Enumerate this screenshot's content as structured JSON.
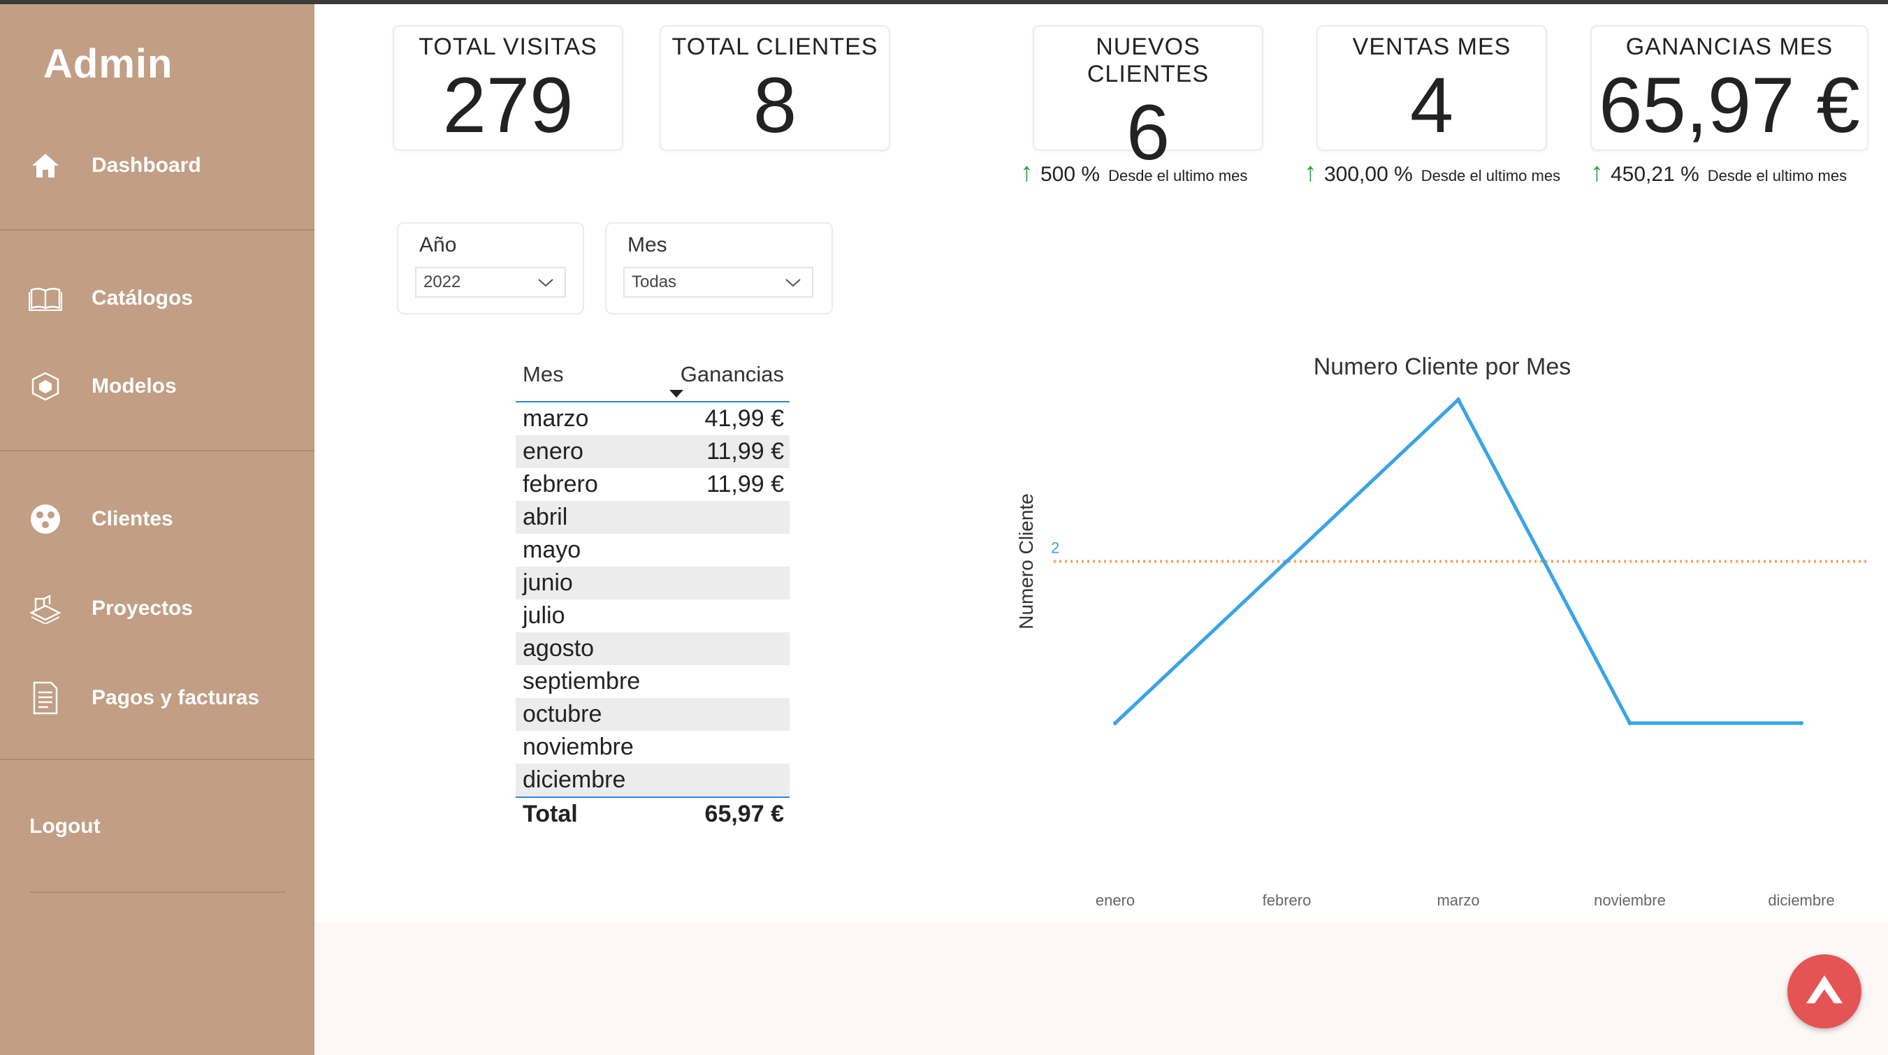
{
  "sidebar": {
    "brand": "Admin",
    "items": [
      {
        "label": "Dashboard",
        "icon": "home-icon"
      },
      {
        "label": "Catálogos",
        "icon": "book-icon"
      },
      {
        "label": "Modelos",
        "icon": "box-icon"
      },
      {
        "label": "Clientes",
        "icon": "users-icon"
      },
      {
        "label": "Proyectos",
        "icon": "blueprint-icon"
      },
      {
        "label": "Pagos y facturas",
        "icon": "invoice-icon"
      }
    ],
    "logout": "Logout"
  },
  "kpis": [
    {
      "title": "TOTAL VISITAS",
      "value": "279"
    },
    {
      "title": "TOTAL CLIENTES",
      "value": "8"
    },
    {
      "title": "NUEVOS CLIENTES",
      "value": "6",
      "delta": "500 %",
      "since": "Desde el ultimo mes"
    },
    {
      "title": "VENTAS MES",
      "value": "4",
      "delta": "300,00 %",
      "since": "Desde el ultimo mes"
    },
    {
      "title": "GANANCIAS MES",
      "value": "65,97 €",
      "delta": "450,21 %",
      "since": "Desde el ultimo mes"
    }
  ],
  "filters": {
    "year": {
      "label": "Año",
      "value": "2022"
    },
    "month": {
      "label": "Mes",
      "value": "Todas"
    }
  },
  "table": {
    "headers": [
      "Mes",
      "Ganancias"
    ],
    "rows": [
      {
        "mes": "marzo",
        "ganancias": "41,99 €"
      },
      {
        "mes": "enero",
        "ganancias": "11,99 €"
      },
      {
        "mes": "febrero",
        "ganancias": "11,99 €"
      },
      {
        "mes": "abril",
        "ganancias": ""
      },
      {
        "mes": "mayo",
        "ganancias": ""
      },
      {
        "mes": "junio",
        "ganancias": ""
      },
      {
        "mes": "julio",
        "ganancias": ""
      },
      {
        "mes": "agosto",
        "ganancias": ""
      },
      {
        "mes": "septiembre",
        "ganancias": ""
      },
      {
        "mes": "octubre",
        "ganancias": ""
      },
      {
        "mes": "noviembre",
        "ganancias": ""
      },
      {
        "mes": "diciembre",
        "ganancias": ""
      }
    ],
    "total_label": "Total",
    "total_value": "65,97 €"
  },
  "chart_data": {
    "type": "line",
    "title": "Numero Cliente por Mes",
    "ylabel": "Numero Cliente",
    "xlabel": "",
    "categories": [
      "enero",
      "febrero",
      "marzo",
      "noviembre",
      "diciembre"
    ],
    "values": [
      1,
      2,
      3,
      1,
      1
    ],
    "reference_line": {
      "value": 2,
      "label": "2",
      "color": "#f5a45a",
      "style": "dotted"
    },
    "ylim": [
      1,
      3
    ],
    "line_color": "#3aa3e8",
    "grid": false
  },
  "colors": {
    "sidebar": "#c19e84",
    "accent_up": "#2e9e3e",
    "fab": "#e55454"
  }
}
